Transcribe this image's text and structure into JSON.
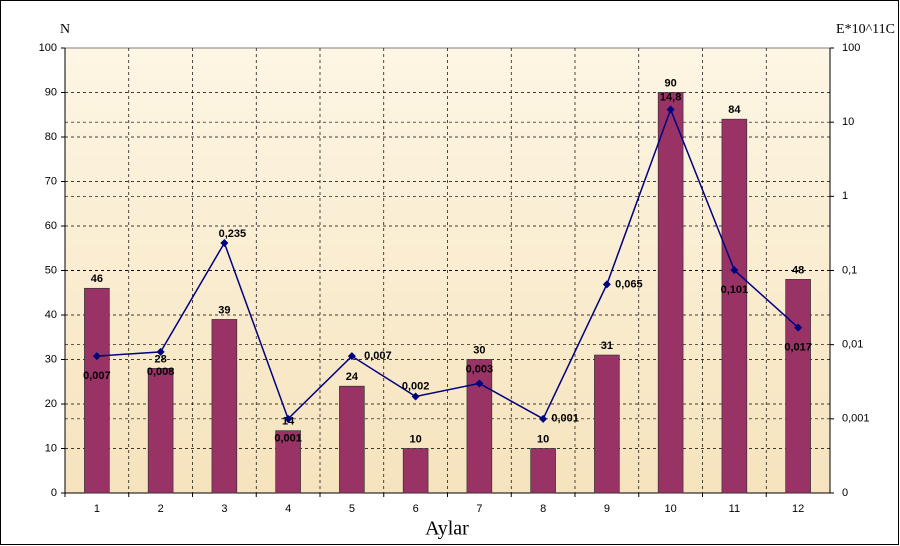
{
  "chart_data": {
    "type": "bar",
    "y_label": "N",
    "y2_label": "E*10^11C",
    "x_label": "Aylar",
    "categories": [
      "1",
      "2",
      "3",
      "4",
      "5",
      "6",
      "7",
      "8",
      "9",
      "10",
      "11",
      "12"
    ],
    "series": [
      {
        "type": "bar",
        "color": "#993366",
        "values": [
          46,
          28,
          39,
          14,
          24,
          10,
          30,
          10,
          31,
          90,
          84,
          48
        ]
      },
      {
        "type": "line",
        "axis": "y2",
        "color": "#000080",
        "values": [
          0.007,
          0.008,
          0.235,
          0.001,
          0.007,
          0.002,
          0.003,
          0.001,
          0.065,
          14.8,
          0.101,
          0.017
        ],
        "value_labels": [
          "0,007",
          "0,008",
          "0,235",
          "0,001",
          "0,007",
          "0,002",
          "0,003",
          "0,001",
          "0,065",
          "14,8",
          "0,101",
          "0,017"
        ]
      }
    ],
    "ylim": [
      0,
      100
    ],
    "yticks": [
      0,
      10,
      20,
      30,
      40,
      50,
      60,
      70,
      80,
      90,
      100
    ],
    "y2lim": [
      0.0001,
      100
    ],
    "y2log": true,
    "y2ticks": [
      {
        "value": 0.0001,
        "label": "0"
      },
      {
        "value": 0.001,
        "label": "0,001"
      },
      {
        "value": 0.01,
        "label": "0,01"
      },
      {
        "value": 0.1,
        "label": "0,1"
      },
      1,
      10,
      100
    ],
    "grid": true
  }
}
